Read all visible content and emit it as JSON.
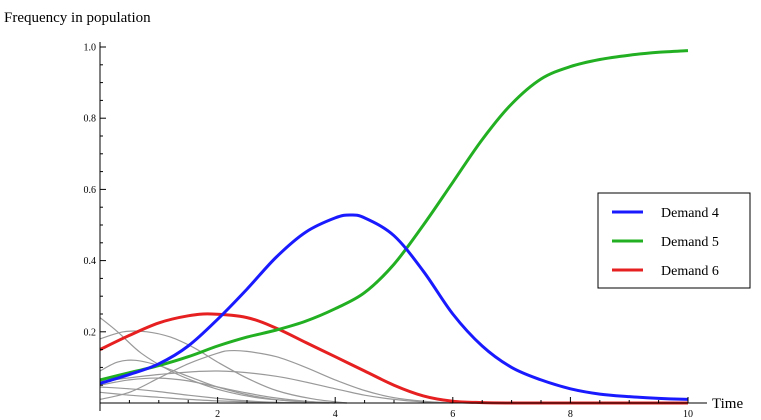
{
  "chart_data": {
    "type": "line",
    "ylabel": "Frequency in population",
    "xlabel": "Time",
    "xlim": [
      0,
      10
    ],
    "ylim": [
      0,
      1.0
    ],
    "x_ticks": [
      2,
      4,
      6,
      8,
      10
    ],
    "y_ticks": [
      0.2,
      0.4,
      0.6,
      0.8,
      1.0
    ],
    "x_tick_labels": [
      "2",
      "4",
      "6",
      "8",
      "10"
    ],
    "y_tick_labels": [
      "0.2",
      "0.4",
      "0.6",
      "0.8",
      "1.0"
    ],
    "grid": false,
    "legend_position": "right",
    "series": [
      {
        "name": "Demand 4",
        "color": "#1a1aff",
        "x": [
          0,
          0.5,
          1,
          1.5,
          2,
          2.5,
          3,
          3.5,
          4,
          4.25,
          4.5,
          5,
          5.5,
          6,
          6.5,
          7,
          7.5,
          8,
          8.5,
          9,
          9.5,
          10
        ],
        "y": [
          0.055,
          0.08,
          0.11,
          0.16,
          0.235,
          0.32,
          0.41,
          0.48,
          0.52,
          0.528,
          0.52,
          0.47,
          0.37,
          0.25,
          0.16,
          0.1,
          0.065,
          0.04,
          0.025,
          0.018,
          0.013,
          0.01
        ]
      },
      {
        "name": "Demand 5",
        "color": "#22b022",
        "x": [
          0,
          0.5,
          1,
          1.5,
          2,
          2.5,
          3,
          3.5,
          4,
          4.5,
          5,
          5.5,
          6,
          6.5,
          7,
          7.5,
          8,
          8.5,
          9,
          9.5,
          10
        ],
        "y": [
          0.065,
          0.085,
          0.105,
          0.13,
          0.16,
          0.185,
          0.205,
          0.23,
          0.265,
          0.31,
          0.39,
          0.5,
          0.62,
          0.74,
          0.84,
          0.91,
          0.945,
          0.965,
          0.977,
          0.985,
          0.99
        ]
      },
      {
        "name": "Demand 6",
        "color": "#e62020",
        "x": [
          0,
          0.5,
          1,
          1.5,
          1.9,
          2.5,
          3,
          3.5,
          4,
          4.5,
          5,
          5.5,
          6,
          6.5,
          7,
          8,
          9,
          10
        ],
        "y": [
          0.15,
          0.19,
          0.225,
          0.245,
          0.25,
          0.24,
          0.21,
          0.17,
          0.13,
          0.09,
          0.05,
          0.02,
          0.005,
          0.001,
          0,
          0,
          0,
          0
        ]
      },
      {
        "color": "#999999",
        "x": [
          0,
          0.3,
          0.7,
          1.2,
          1.7,
          2.2,
          2.8,
          3.5,
          4.2
        ],
        "y": [
          0.24,
          0.2,
          0.14,
          0.09,
          0.055,
          0.03,
          0.012,
          0.004,
          0
        ]
      },
      {
        "color": "#999999",
        "x": [
          0,
          0.4,
          0.8,
          1.2,
          1.6,
          2.0,
          2.5,
          3.0,
          3.6,
          4.2
        ],
        "y": [
          0.18,
          0.2,
          0.2,
          0.185,
          0.155,
          0.115,
          0.07,
          0.035,
          0.012,
          0
        ]
      },
      {
        "color": "#999999",
        "x": [
          0,
          0.3,
          0.6,
          1.0,
          1.5,
          2.0,
          2.6,
          3.2,
          4.0
        ],
        "y": [
          0.09,
          0.115,
          0.12,
          0.105,
          0.075,
          0.045,
          0.02,
          0.006,
          0
        ]
      },
      {
        "color": "#999999",
        "x": [
          0,
          0.5,
          1.0,
          1.5,
          2.0,
          2.5,
          3.0,
          3.5,
          4.0
        ],
        "y": [
          0.05,
          0.065,
          0.07,
          0.062,
          0.045,
          0.028,
          0.014,
          0.005,
          0
        ]
      },
      {
        "color": "#999999",
        "x": [
          0,
          0.5,
          1.0,
          1.5,
          2.0,
          2.5,
          3.0,
          3.5
        ],
        "y": [
          0.045,
          0.04,
          0.032,
          0.022,
          0.013,
          0.006,
          0.002,
          0
        ]
      },
      {
        "color": "#999999",
        "x": [
          0,
          0.5,
          1.0,
          1.5,
          2.0,
          2.6,
          3.2,
          3.9
        ],
        "y": [
          0.03,
          0.022,
          0.016,
          0.01,
          0.006,
          0.003,
          0.001,
          0
        ]
      },
      {
        "color": "#999999",
        "x": [
          0,
          0.5,
          1.0,
          1.5,
          2.0,
          2.2,
          2.5,
          3.0,
          3.5,
          4.0,
          4.5,
          5.0,
          5.5,
          6.0
        ],
        "y": [
          0.01,
          0.03,
          0.07,
          0.11,
          0.14,
          0.147,
          0.145,
          0.13,
          0.1,
          0.065,
          0.035,
          0.015,
          0.005,
          0
        ]
      },
      {
        "color": "#999999",
        "x": [
          0,
          1.0,
          2.0,
          3.0,
          4.0,
          4.5,
          5.0,
          5.5,
          6.0
        ],
        "y": [
          0.06,
          0.08,
          0.09,
          0.075,
          0.04,
          0.022,
          0.01,
          0.003,
          0
        ]
      }
    ]
  }
}
